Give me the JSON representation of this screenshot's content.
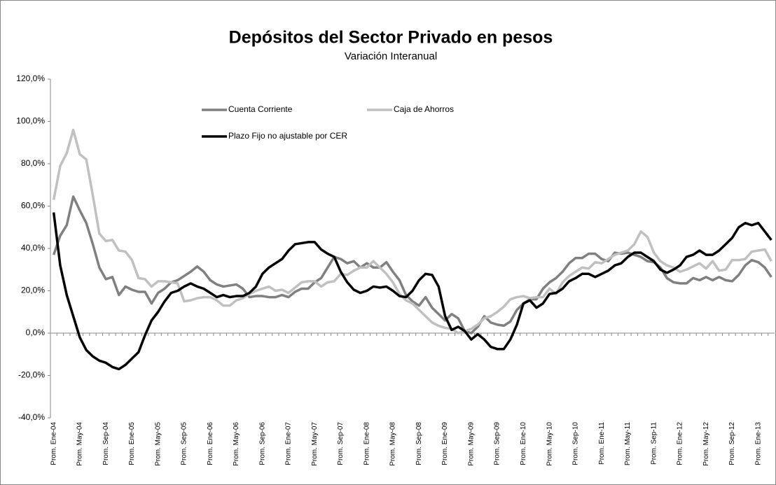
{
  "chart_data": {
    "type": "line",
    "title": "Depósitos del Sector Privado en pesos",
    "subtitle": "Variación Interanual",
    "categories": [
      "Prom. Ene-04",
      null,
      null,
      null,
      "Prom. May-04",
      null,
      null,
      null,
      "Prom. Sep-04",
      null,
      null,
      null,
      "Prom. Ene-05",
      null,
      null,
      null,
      "Prom. May-05",
      null,
      null,
      null,
      "Prom. Sep-05",
      null,
      null,
      null,
      "Prom. Ene-06",
      null,
      null,
      null,
      "Prom. May-06",
      null,
      null,
      null,
      "Prom. Sep-06",
      null,
      null,
      null,
      "Prom. Ene-07",
      null,
      null,
      null,
      "Prom. May-07",
      null,
      null,
      null,
      "Prom. Sep-07",
      null,
      null,
      null,
      "Prom. Ene-08",
      null,
      null,
      null,
      "Prom. May-08",
      null,
      null,
      null,
      "Prom. Sep-08",
      null,
      null,
      null,
      "Prom. Ene-09",
      null,
      null,
      null,
      "Prom. May-09",
      null,
      null,
      null,
      "Prom. Sep-09",
      null,
      null,
      null,
      "Prom. Ene-10",
      null,
      null,
      null,
      "Prom. May-10",
      null,
      null,
      null,
      "Prom. Sep-10",
      null,
      null,
      null,
      "Prom. Ene-11",
      null,
      null,
      null,
      "Prom. May-11",
      null,
      null,
      null,
      "Prom. Sep-11",
      null,
      null,
      null,
      "Prom. Ene-12",
      null,
      null,
      null,
      "Prom. May-12",
      null,
      null,
      null,
      "Prom. Sep-12",
      null,
      null,
      null,
      "Prom. Ene-13",
      null,
      null
    ],
    "series": [
      {
        "name": "Cuenta Corriente",
        "color": "#808080",
        "values": [
          37,
          46,
          51,
          64.5,
          58,
          52,
          42,
          31,
          25.5,
          26.5,
          18,
          22,
          20.5,
          19.5,
          19.5,
          14,
          19,
          21,
          24,
          25,
          27,
          29,
          31.5,
          29,
          25,
          23,
          22,
          22.5,
          23,
          21,
          17,
          17.5,
          17.5,
          17,
          17,
          18,
          17,
          19.5,
          21,
          21,
          24,
          26,
          31,
          36,
          35,
          33,
          34,
          31,
          33,
          31,
          31,
          33.5,
          29,
          25,
          18,
          15,
          13,
          17,
          12,
          9,
          6,
          9,
          7,
          1,
          0,
          3,
          8,
          5,
          4,
          3.5,
          5.5,
          11,
          14,
          16,
          16,
          21,
          24,
          26,
          29,
          33,
          35.5,
          35.5,
          37.5,
          37.5,
          35,
          34,
          38,
          37.5,
          38,
          37,
          36,
          34,
          33.5,
          31,
          26,
          24,
          23.5,
          23.5,
          26,
          25,
          26.5,
          25,
          26.5,
          25,
          24.5,
          27.5,
          32,
          34.5,
          33.5,
          31,
          26.5
        ]
      },
      {
        "name": "Caja de Ahorros",
        "color": "#c0c0c0",
        "values": [
          63,
          79,
          85,
          96,
          84.5,
          82,
          65,
          47,
          43.5,
          44,
          39,
          38.5,
          34.5,
          26,
          25.5,
          22,
          24.5,
          24.5,
          24,
          23.5,
          15,
          15.5,
          16.5,
          17,
          17,
          15.5,
          13,
          13,
          15.5,
          16.5,
          18.5,
          20,
          21,
          22,
          20,
          20.5,
          19,
          21.5,
          24,
          24.5,
          24.5,
          22,
          24,
          24.5,
          28,
          27.5,
          29.5,
          31,
          31,
          34,
          31,
          28,
          24,
          18.5,
          15.5,
          14,
          11,
          8,
          5,
          3.5,
          2.5,
          2,
          0,
          1,
          2,
          4,
          7,
          8,
          10,
          12.5,
          16,
          17,
          17.5,
          16.5,
          17,
          17,
          21,
          18.5,
          24,
          27,
          29,
          31,
          30.5,
          33.5,
          33,
          35,
          37,
          38,
          39,
          42,
          48,
          45.5,
          38,
          34,
          32,
          31,
          29,
          30,
          31.5,
          33,
          30.5,
          34,
          29.5,
          30,
          34.5,
          34.5,
          35,
          38.5,
          39,
          39.5,
          34
        ]
      },
      {
        "name": "Plazo Fijo no ajustable por CER",
        "color": "#000000",
        "values": [
          57,
          32,
          18,
          8,
          -2,
          -8,
          -11,
          -13,
          -14,
          -16,
          -17,
          -15,
          -12,
          -9,
          -1,
          6,
          10,
          15,
          19,
          20,
          22,
          23.5,
          22,
          21,
          19,
          17,
          18,
          17,
          17.5,
          17.5,
          19,
          22,
          28,
          31,
          33,
          35,
          39,
          42,
          42.5,
          43,
          43,
          39.5,
          37.5,
          36,
          29,
          24,
          20.5,
          19,
          20,
          22,
          21.5,
          22,
          20,
          17.5,
          17,
          20,
          25,
          28,
          27.5,
          22,
          8,
          1.5,
          3,
          1,
          -3,
          -0.5,
          -3,
          -6.5,
          -7.5,
          -7.5,
          -3,
          4,
          14,
          15.5,
          12,
          14,
          18.5,
          19,
          21,
          24.5,
          26,
          28,
          28,
          26.5,
          28,
          29.5,
          32,
          33,
          36,
          38,
          38,
          36,
          34,
          30,
          28.5,
          30,
          32,
          36,
          37,
          39,
          37,
          37,
          39,
          42,
          45,
          50,
          52,
          51,
          52,
          48,
          44
        ]
      }
    ],
    "ylim": [
      -40,
      120
    ],
    "yticks": [
      {
        "value": -40,
        "label": "-40,0%"
      },
      {
        "value": -20,
        "label": "-20,0%"
      },
      {
        "value": 0,
        "label": "0,0%"
      },
      {
        "value": 20,
        "label": "20,0%"
      },
      {
        "value": 40,
        "label": "40,0%"
      },
      {
        "value": 60,
        "label": "60,0%"
      },
      {
        "value": 80,
        "label": "80,0%"
      },
      {
        "value": 100,
        "label": "100,0%"
      },
      {
        "value": 120,
        "label": "120,0%"
      }
    ],
    "grid": false,
    "legend": "top"
  }
}
